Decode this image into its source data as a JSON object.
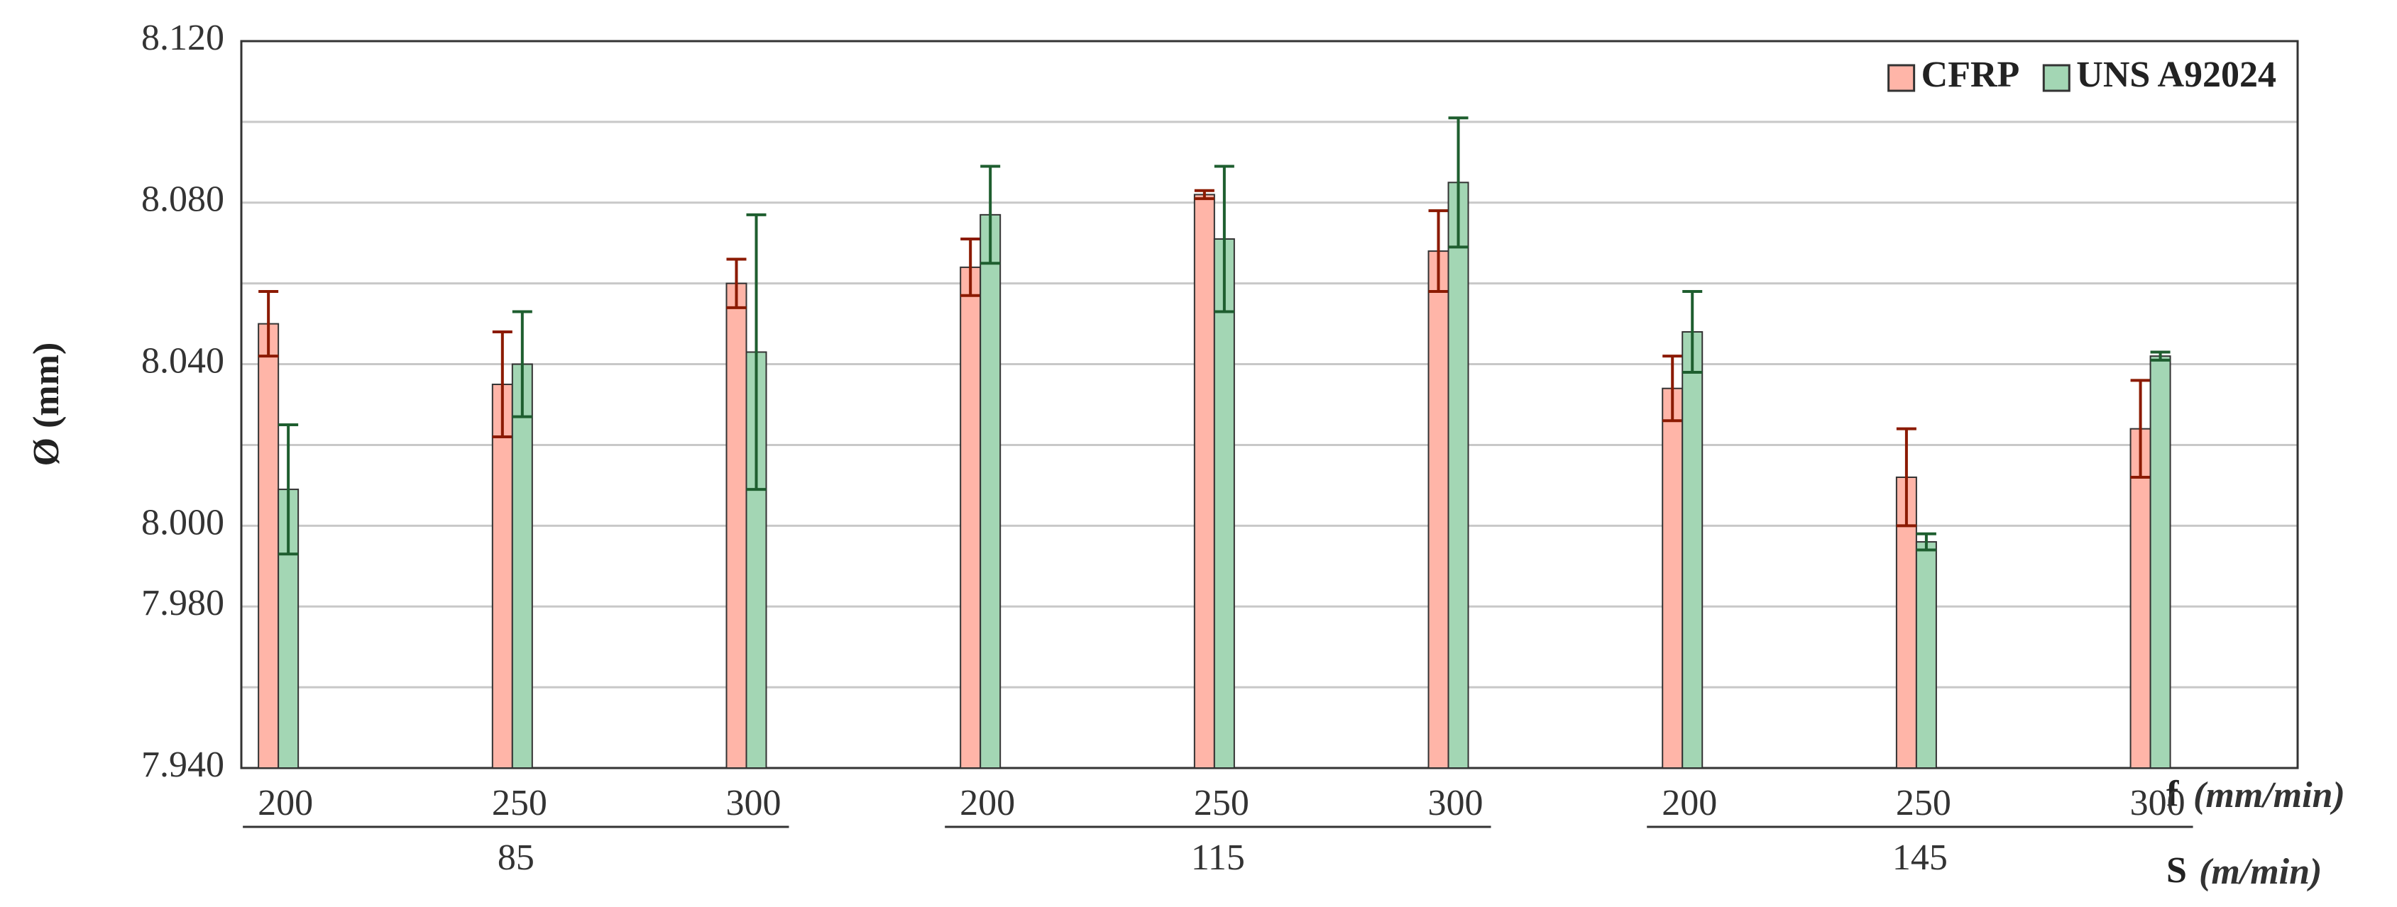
{
  "chart_data": {
    "type": "bar",
    "y_label": "Ø (mm)",
    "x_label": "f",
    "x_unit": "(mm/min)",
    "group_label": "S",
    "group_unit": "(m/min)",
    "categories": [
      "200",
      "250",
      "300",
      "200",
      "250",
      "300",
      "200",
      "250",
      "300"
    ],
    "groups": [
      "85",
      "115",
      "145"
    ],
    "series": [
      {
        "name": "CFRP",
        "color": "#ffb5a8",
        "edge": "#8b1a00",
        "values": [
          8.05,
          8.035,
          8.06,
          8.064,
          8.082,
          8.068,
          8.034,
          8.012,
          8.024
        ],
        "errors": [
          0.008,
          0.013,
          0.006,
          0.007,
          0.001,
          0.01,
          0.008,
          0.012,
          0.012
        ]
      },
      {
        "name": "UNS A92024",
        "color": "#a3d6b4",
        "edge": "#1e5e2f",
        "values": [
          8.009,
          8.04,
          8.043,
          8.077,
          8.071,
          8.085,
          8.048,
          7.996,
          8.042
        ],
        "errors": [
          0.016,
          0.013,
          0.034,
          0.012,
          0.018,
          0.016,
          0.01,
          0.002,
          0.001
        ]
      }
    ],
    "ylim": [
      7.94,
      8.12
    ],
    "yticks": [
      {
        "value": 7.94,
        "label": "7.940"
      },
      {
        "value": 7.98,
        "label": "7.980"
      },
      {
        "value": 8.0,
        "label": "8.000"
      },
      {
        "value": 8.04,
        "label": "8.040"
      },
      {
        "value": 8.08,
        "label": "8.080"
      },
      {
        "value": 8.12,
        "label": "8.120"
      }
    ],
    "ygrid": [
      7.96,
      8.02,
      8.06,
      8.1
    ],
    "grid": true,
    "legend": "top-right"
  }
}
